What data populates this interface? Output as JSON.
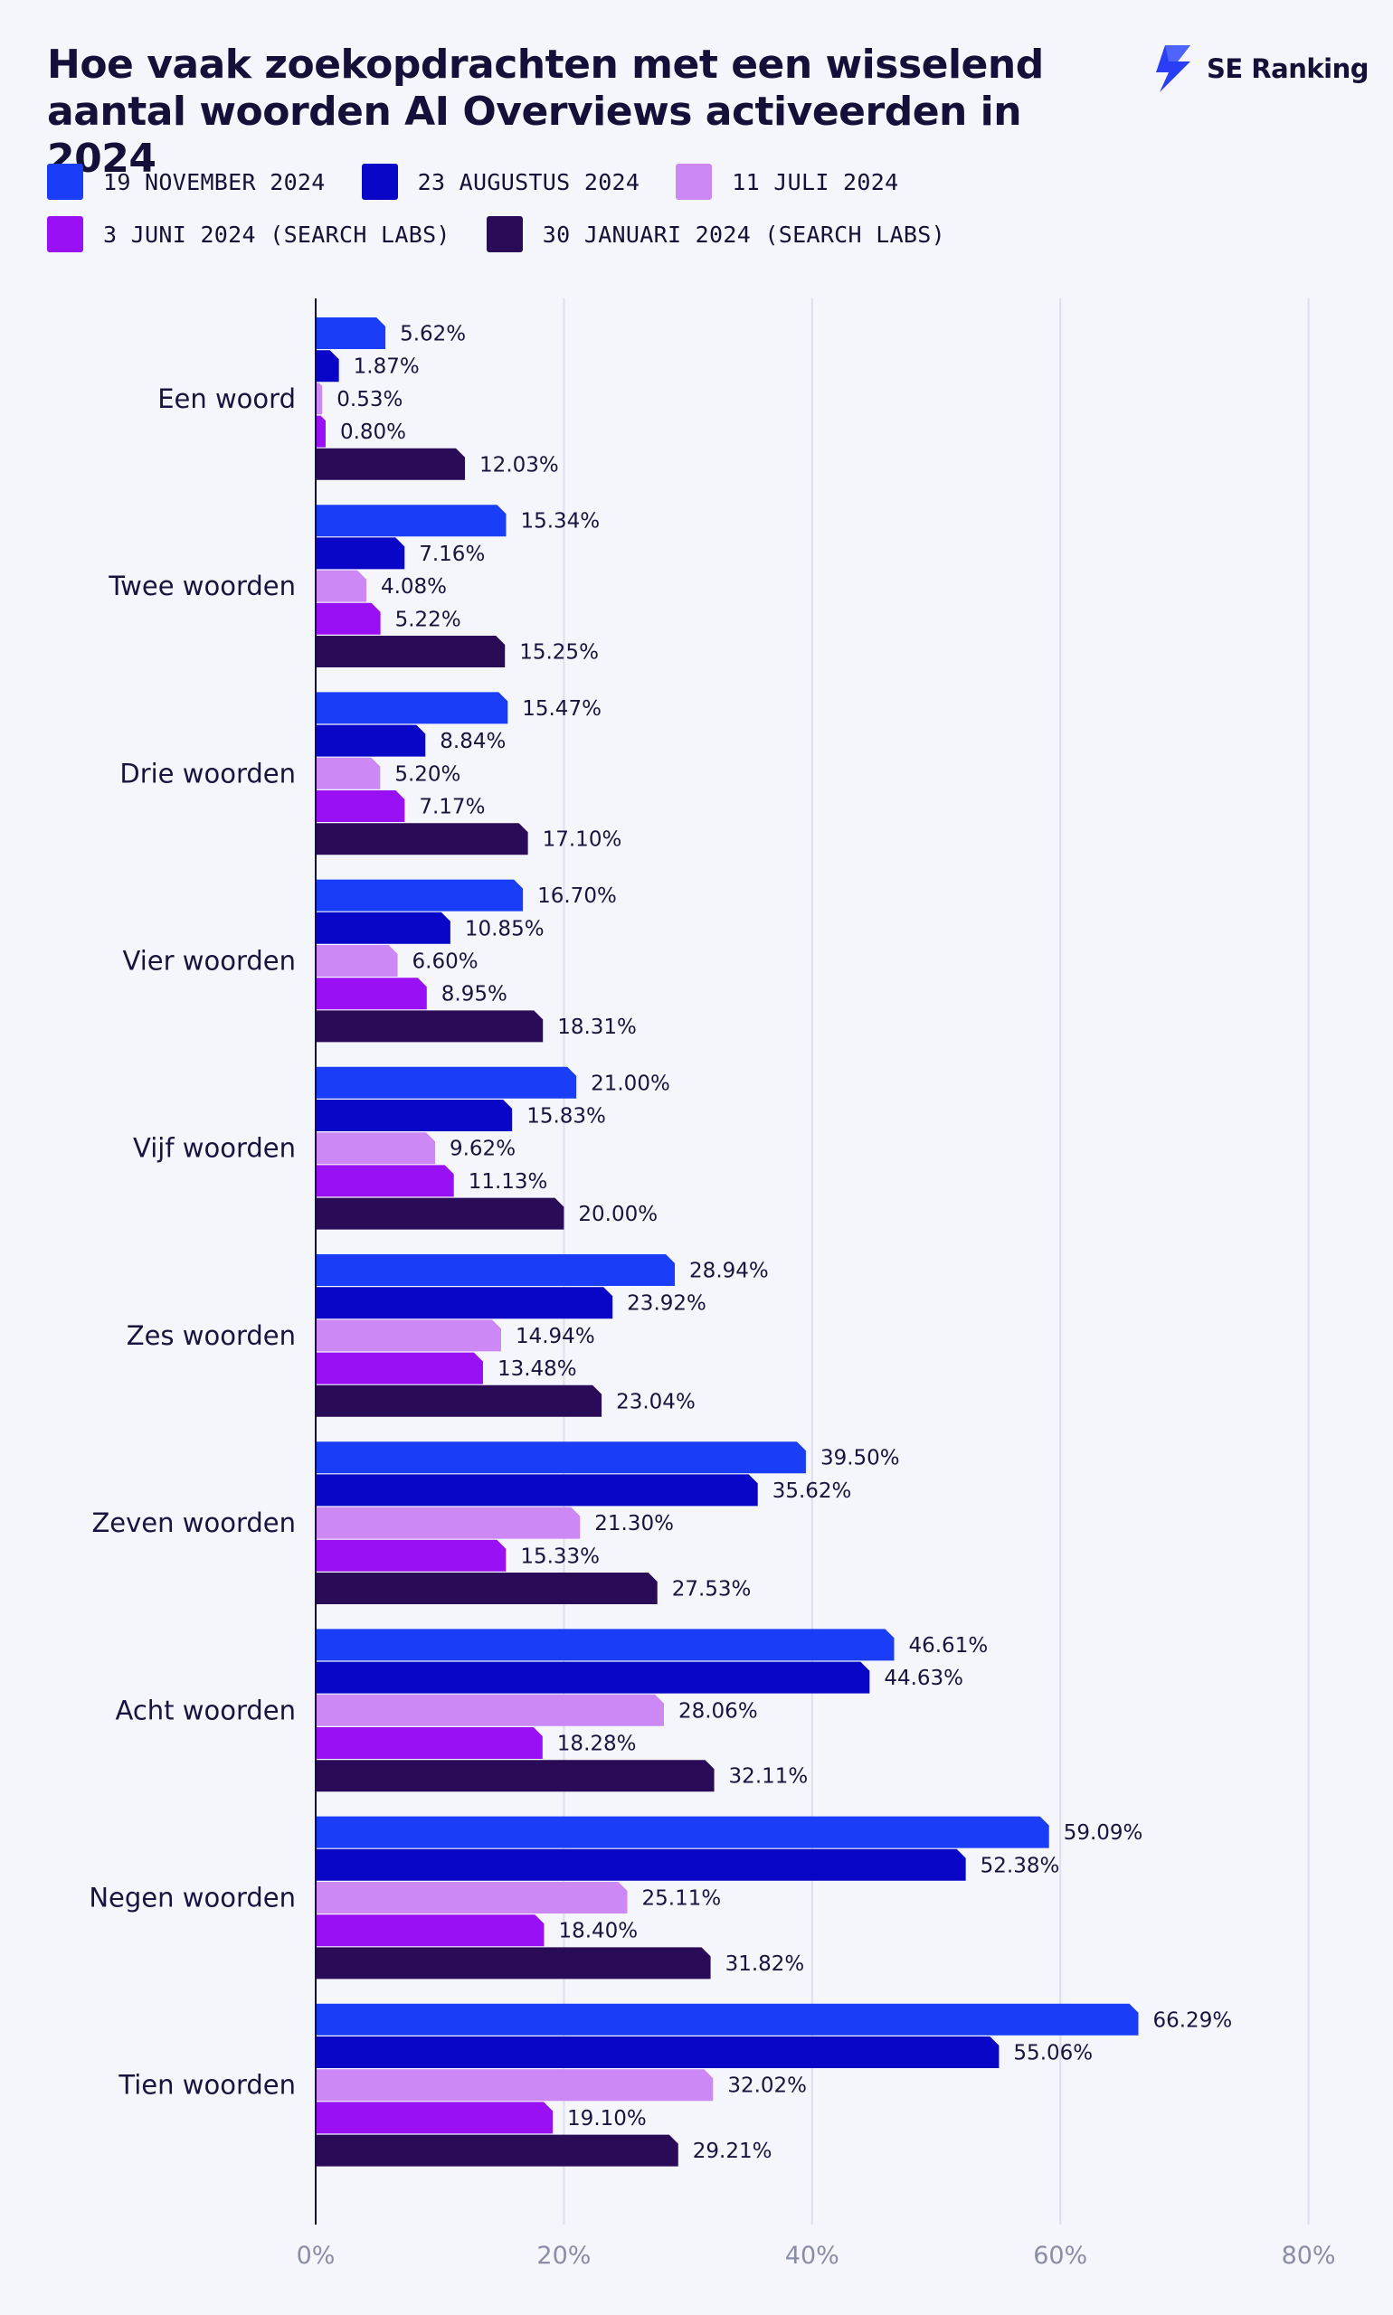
{
  "brand": {
    "name": "SE Ranking",
    "logo_icon": "se-ranking-logo-icon",
    "color": "#2a3ef5"
  },
  "chart_data": {
    "type": "bar",
    "orientation": "horizontal",
    "title": "Hoe vaak zoekopdrachten met een wisselend aantal woorden AI Overviews activeerden in 2024",
    "xlabel": "",
    "ylabel": "",
    "xlim": [
      0,
      80
    ],
    "xticks": [
      "0%",
      "20%",
      "40%",
      "60%",
      "80%"
    ],
    "grid": true,
    "legend_position": "top",
    "categories": [
      "Een woord",
      "Twee woorden",
      "Drie woorden",
      "Vier woorden",
      "Vijf woorden",
      "Zes woorden",
      "Zeven woorden",
      "Acht woorden",
      "Negen woorden",
      "Tien woorden"
    ],
    "series": [
      {
        "name": "19 NOVEMBER 2024",
        "color": "#1a3ef8",
        "values": [
          5.62,
          15.34,
          15.47,
          16.7,
          21.0,
          28.94,
          39.5,
          46.61,
          59.09,
          66.29
        ],
        "labels": [
          "5.62%",
          "15.34%",
          "15.47%",
          "16.70%",
          "21.00%",
          "28.94%",
          "39.50%",
          "46.61%",
          "59.09%",
          "66.29%"
        ]
      },
      {
        "name": "23 AUGUSTUS 2024",
        "color": "#0a06c8",
        "values": [
          1.87,
          7.16,
          8.84,
          10.85,
          15.83,
          23.92,
          35.62,
          44.63,
          52.38,
          55.06
        ],
        "labels": [
          "1.87%",
          "7.16%",
          "8.84%",
          "10.85%",
          "15.83%",
          "23.92%",
          "35.62%",
          "44.63%",
          "52.38%",
          "55.06%"
        ]
      },
      {
        "name": "11 JULI 2024",
        "color": "#cc88f5",
        "values": [
          0.53,
          4.08,
          5.2,
          6.6,
          9.62,
          14.94,
          21.3,
          28.06,
          25.11,
          32.02
        ],
        "labels": [
          "0.53%",
          "4.08%",
          "5.20%",
          "6.60%",
          "9.62%",
          "14.94%",
          "21.30%",
          "28.06%",
          "25.11%",
          "32.02%"
        ]
      },
      {
        "name": "3 JUNI 2024 (SEARCH LABS)",
        "color": "#9a10f5",
        "values": [
          0.8,
          5.22,
          7.17,
          8.95,
          11.13,
          13.48,
          15.33,
          18.28,
          18.4,
          19.1
        ],
        "labels": [
          "0.80%",
          "5.22%",
          "7.17%",
          "8.95%",
          "11.13%",
          "13.48%",
          "15.33%",
          "18.28%",
          "18.40%",
          "19.10%"
        ]
      },
      {
        "name": "30 JANUARI 2024 (SEARCH LABS)",
        "color": "#2a0b58",
        "values": [
          12.03,
          15.25,
          17.1,
          18.31,
          20.0,
          23.04,
          27.53,
          32.11,
          31.82,
          29.21
        ],
        "labels": [
          "12.03%",
          "15.25%",
          "17.10%",
          "18.31%",
          "20.00%",
          "23.04%",
          "27.53%",
          "32.11%",
          "31.82%",
          "29.21%"
        ]
      }
    ]
  }
}
